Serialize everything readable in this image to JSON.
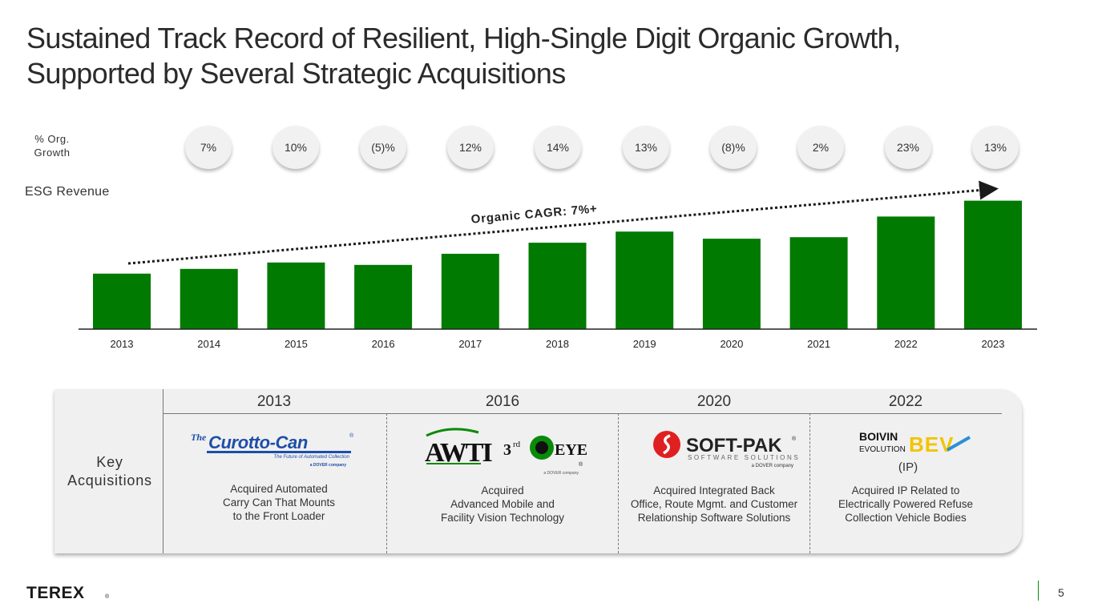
{
  "title": {
    "line1": "Sustained Track Record of Resilient, High-Single Digit Organic Growth,",
    "line2": "Supported by Several Strategic Acquisitions"
  },
  "org_growth": {
    "label_line1": "% Org.",
    "label_line2": "Growth",
    "values": [
      "7%",
      "10%",
      "(5)%",
      "12%",
      "14%",
      "13%",
      "(8)%",
      "2%",
      "23%",
      "13%"
    ]
  },
  "esg_label": "ESG Revenue",
  "chart_data": {
    "type": "bar",
    "title": "ESG Revenue",
    "categories": [
      "2013",
      "2014",
      "2015",
      "2016",
      "2017",
      "2018",
      "2019",
      "2020",
      "2021",
      "2022",
      "2023"
    ],
    "values": [
      70,
      76,
      84,
      81,
      95,
      109,
      123,
      114,
      116,
      142,
      162
    ],
    "ylim": [
      0,
      170
    ],
    "y_unit": "relative (unlabeled)",
    "bar_color": "#007a00",
    "annotation": "Organic CAGR: 7%+",
    "growth_labels": [
      "7%",
      "10%",
      "(5)%",
      "12%",
      "14%",
      "13%",
      "(8)%",
      "2%",
      "23%",
      "13%"
    ]
  },
  "acquisitions": {
    "label_line1": "Key",
    "label_line2": "Acquisitions",
    "items": [
      {
        "year": "2013",
        "logo": "The Curotto-Can",
        "logo_tagline": "The Future of Automated Collection",
        "logo_company": "a DOVER company",
        "desc": [
          "Acquired Automated",
          "Carry Can That Mounts",
          "to the Front Loader"
        ]
      },
      {
        "year": "2016",
        "logo": "AWTI",
        "logo2": "3rd EYE",
        "logo_company": "a DOVER company",
        "desc": [
          "Acquired",
          "Advanced Mobile and",
          "Facility Vision Technology"
        ]
      },
      {
        "year": "2020",
        "logo": "SOFT-PAK",
        "logo_sub": "SOFTWARE SOLUTIONS",
        "logo_company": "a DOVER company",
        "desc": [
          "Acquired Integrated Back",
          "Office, Route Mgmt. and Customer",
          "Relationship Software Solutions"
        ]
      },
      {
        "year": "2022",
        "logo": "BOIVIN",
        "logo_sub": "EVOLUTION",
        "logo2": "BEV",
        "ip": "(IP)",
        "desc": [
          "Acquired IP Related to",
          "Electrically Powered Refuse",
          "Collection Vehicle Bodies"
        ]
      }
    ]
  },
  "footer": {
    "brand": "TEREX",
    "page": "5"
  },
  "colors": {
    "bar": "#007a00",
    "brand_blue": "#1e4ea8",
    "softpak_red": "#e02020",
    "page_accent": "#0a8a0a"
  }
}
